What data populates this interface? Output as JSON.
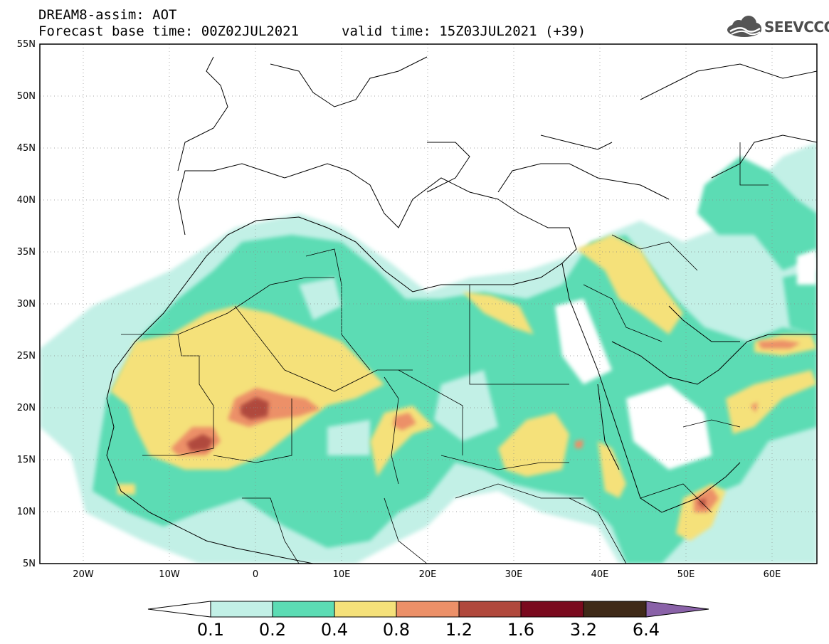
{
  "title": {
    "line1": "DREAM8-assim: AOT",
    "line2": "Forecast base time: 00Z02JUL2021",
    "valid": "valid time: 15Z03JUL2021 (+39)"
  },
  "logo": {
    "text": "SEEVCCC",
    "icon": "cloud-logo-icon"
  },
  "map": {
    "lon_range": [
      -25,
      65
    ],
    "lat_range": [
      5,
      55
    ],
    "lat_labels": [
      "5N",
      "10N",
      "15N",
      "20N",
      "25N",
      "30N",
      "35N",
      "40N",
      "45N",
      "50N",
      "55N"
    ],
    "lon_labels": [
      "20W",
      "10W",
      "0",
      "10E",
      "20E",
      "30E",
      "40E",
      "50E",
      "60E"
    ]
  },
  "colorbar": {
    "labels": [
      "0.1",
      "0.2",
      "0.4",
      "0.8",
      "1.2",
      "1.6",
      "3.2",
      "6.4"
    ],
    "colors": [
      "#ffffff",
      "#c2f0e6",
      "#5cdcb4",
      "#f5e17a",
      "#ec9068",
      "#b0483c",
      "#7a0a1e",
      "#3f2a18",
      "#8a62a8"
    ]
  }
}
